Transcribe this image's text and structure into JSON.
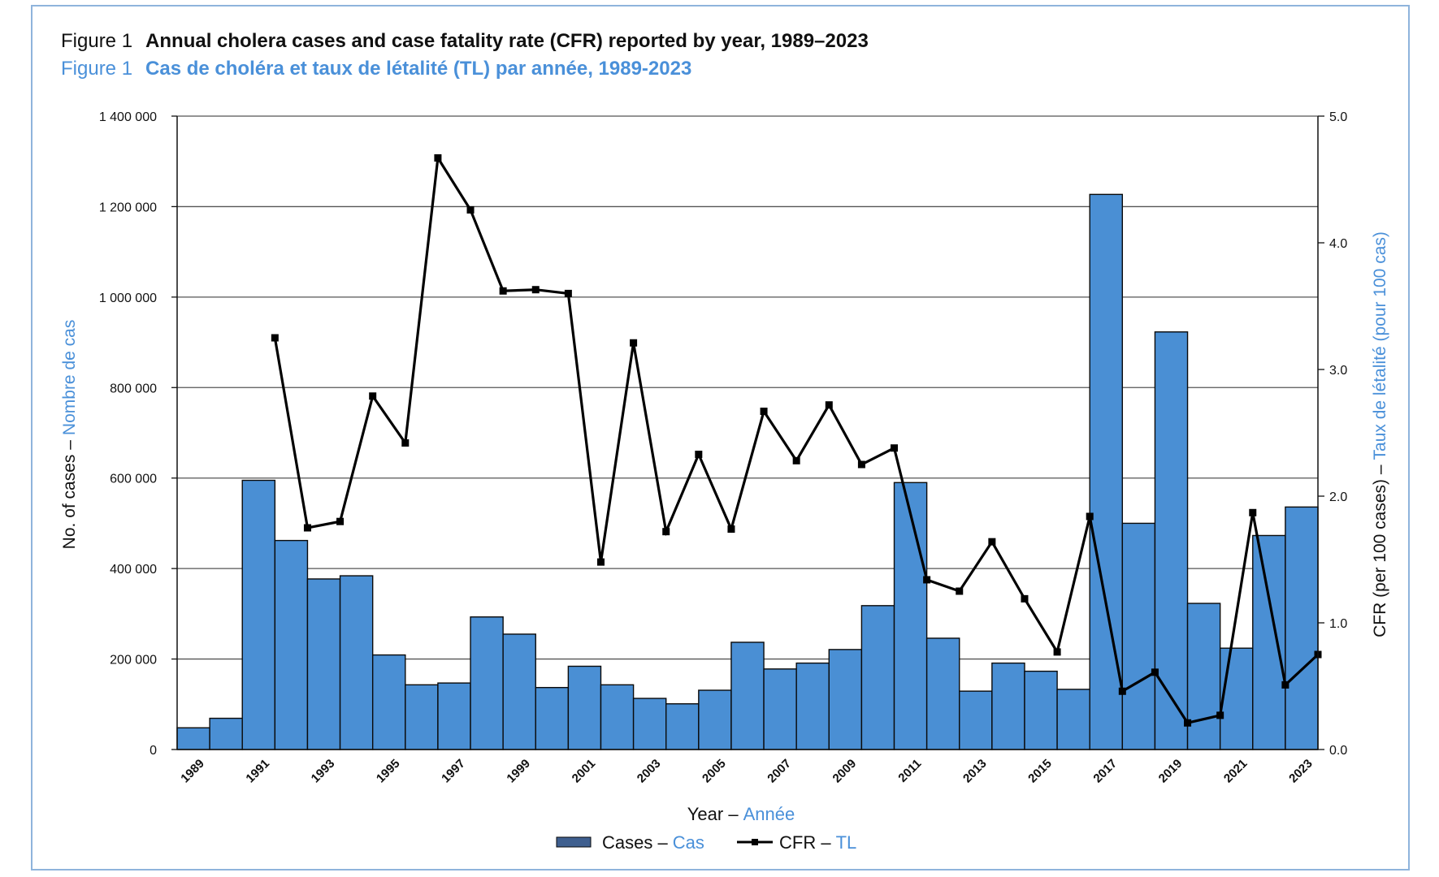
{
  "colors": {
    "bar_fill": "#4a8fd4",
    "bar_stroke": "#0a0a0a",
    "line": "#000000",
    "frame": "#8fb4dc",
    "french_text": "#4a90d9",
    "grid": "#555555"
  },
  "header": {
    "en_prefix": "Figure 1",
    "en_title": "Annual cholera cases and case fatality rate (CFR) reported by year, 1989–2023",
    "fr_prefix": "Figure 1",
    "fr_title": "Cas de choléra et taux de létalité (TL) par année, 1989-2023"
  },
  "axes": {
    "y_left_en": "No. of cases –",
    "y_left_fr": "Nombre de cas",
    "y_right_en": "CFR (per 100 cases) –",
    "y_right_fr": "Taux de létalité (pour 100 cas)",
    "x_en": "Year –",
    "x_fr": "Année"
  },
  "legend": {
    "cases_en": "Cases –",
    "cases_fr": "Cas",
    "cfr_en": "CFR –",
    "cfr_fr": "TL"
  },
  "chart_data": {
    "type": "bar",
    "categories": [
      "1989",
      "1990",
      "1991",
      "1992",
      "1993",
      "1994",
      "1995",
      "1996",
      "1997",
      "1998",
      "1999",
      "2000",
      "2001",
      "2002",
      "2003",
      "2004",
      "2005",
      "2006",
      "2007",
      "2008",
      "2009",
      "2010",
      "2011",
      "2012",
      "2013",
      "2014",
      "2015",
      "2016",
      "2017",
      "2018",
      "2019",
      "2020",
      "2021",
      "2022",
      "2023"
    ],
    "x_tick_labels": [
      "1989",
      "1991",
      "1993",
      "1995",
      "1997",
      "1999",
      "2001",
      "2003",
      "2005",
      "2007",
      "2009",
      "2011",
      "2013",
      "2015",
      "2017",
      "2019",
      "2021",
      "2023"
    ],
    "series": [
      {
        "name": "Cases – Cas",
        "type": "bar",
        "axis": "left",
        "values": [
          48000,
          69000,
          595000,
          462000,
          377000,
          384000,
          209000,
          143000,
          147000,
          293000,
          255000,
          137000,
          184000,
          143000,
          113000,
          101000,
          131000,
          237000,
          178000,
          191000,
          221000,
          318000,
          590000,
          246000,
          129000,
          191000,
          173000,
          133000,
          1227000,
          500000,
          923000,
          323000,
          224000,
          473000,
          536000
        ]
      },
      {
        "name": "CFR – TL",
        "type": "line",
        "axis": "right",
        "values": [
          null,
          null,
          3.25,
          1.75,
          1.8,
          2.79,
          2.42,
          4.67,
          4.26,
          3.62,
          3.63,
          3.6,
          1.48,
          3.21,
          1.72,
          2.33,
          1.74,
          2.67,
          2.28,
          2.72,
          2.25,
          2.38,
          1.34,
          1.25,
          1.64,
          1.19,
          0.77,
          1.84,
          0.46,
          0.61,
          0.21,
          0.27,
          1.87,
          0.51,
          0.75
        ]
      }
    ],
    "y_left": {
      "ylim": [
        0,
        1400000
      ],
      "ticks": [
        "0",
        "200 000",
        "400 000",
        "600 000",
        "800 000",
        "1 000 000",
        "1 200 000",
        "1 400 000"
      ]
    },
    "y_right": {
      "ylim": [
        0,
        5
      ],
      "ticks": [
        "0.0",
        "1.0",
        "2.0",
        "3.0",
        "4.0",
        "5.0"
      ]
    },
    "grid": "horizontal",
    "legend_position": "bottom-center"
  }
}
